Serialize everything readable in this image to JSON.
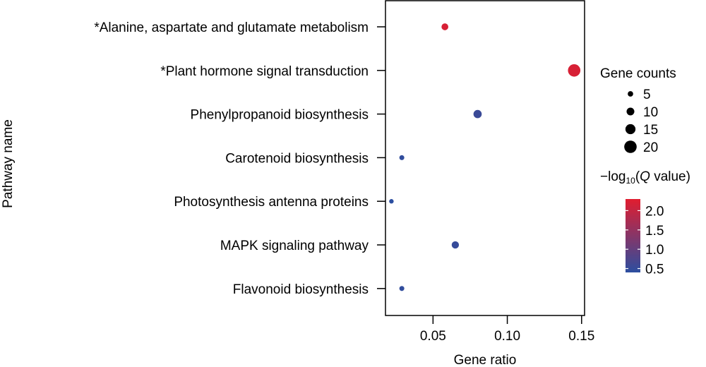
{
  "chart_data": {
    "type": "scatter",
    "title": "",
    "xlabel": "Gene ratio",
    "ylabel": "Pathway name",
    "xlim": [
      0.018,
      0.152
    ],
    "xticks": [
      0.05,
      0.1,
      0.15
    ],
    "xtick_labels": [
      "0.05",
      "0.10",
      "0.15"
    ],
    "grid": false,
    "categories": [
      "*Alanine, aspartate and glutamate metabolism",
      "*Plant hormone signal transduction",
      "Phenylpropanoid biosynthesis",
      "Carotenoid biosynthesis",
      "Photosynthesis antenna proteins",
      "MAPK signaling pathway",
      "Flavonoid biosynthesis"
    ],
    "points": [
      {
        "category": "*Alanine, aspartate and glutamate metabolism",
        "gene_ratio": 0.058,
        "gene_counts": 8,
        "neg_log10_q": 2.2
      },
      {
        "category": "*Plant hormone signal transduction",
        "gene_ratio": 0.145,
        "gene_counts": 20,
        "neg_log10_q": 2.2
      },
      {
        "category": "Phenylpropanoid biosynthesis",
        "gene_ratio": 0.08,
        "gene_counts": 11,
        "neg_log10_q": 0.55
      },
      {
        "category": "Carotenoid biosynthesis",
        "gene_ratio": 0.029,
        "gene_counts": 4,
        "neg_log10_q": 0.45
      },
      {
        "category": "Photosynthesis antenna proteins",
        "gene_ratio": 0.022,
        "gene_counts": 3,
        "neg_log10_q": 0.4
      },
      {
        "category": "MAPK signaling pathway",
        "gene_ratio": 0.065,
        "gene_counts": 9,
        "neg_log10_q": 0.5
      },
      {
        "category": "Flavonoid biosynthesis",
        "gene_ratio": 0.029,
        "gene_counts": 4,
        "neg_log10_q": 0.45
      }
    ],
    "legend_size": {
      "title": "Gene counts",
      "values": [
        5,
        10,
        15,
        20
      ],
      "labels": [
        "5",
        "10",
        "15",
        "20"
      ]
    },
    "legend_color": {
      "title_prefix": "−log",
      "title_sub": "10",
      "title_open": "(",
      "title_q": "Q",
      "title_rest": " value)",
      "range": [
        0.4,
        2.3
      ],
      "ticks": [
        2.0,
        1.5,
        1.0,
        0.5
      ],
      "tick_labels": [
        "2.0",
        "1.5",
        "1.0",
        "0.5"
      ],
      "colors": [
        "#2c4ea0",
        "#e11d2f"
      ]
    },
    "legend_placement": "right"
  }
}
